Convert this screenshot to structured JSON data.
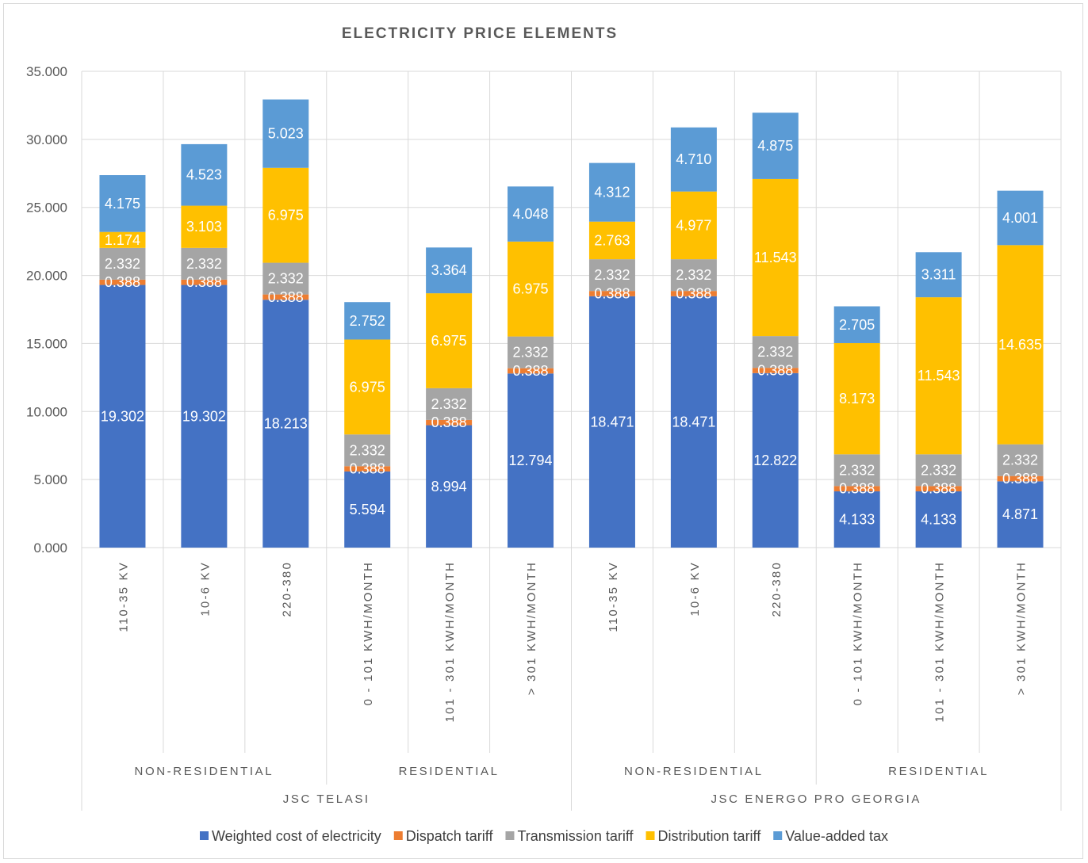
{
  "chart_data": {
    "type": "bar",
    "stacked": true,
    "title": "ELECTRICITY PRICE ELEMENTS",
    "xlabel": "",
    "ylabel": "",
    "ylim": [
      0,
      35
    ],
    "yticks": [
      "0.000",
      "5.000",
      "10.000",
      "15.000",
      "20.000",
      "25.000",
      "30.000",
      "35.000"
    ],
    "grid": "vertical category separators",
    "legend_position": "bottom",
    "categories": [
      "110-35 KV",
      "10-6 KV",
      "220-380",
      "0 - 101 KWH/MONTH",
      "101 - 301 KWH/MONTH",
      "> 301 KWH/MONTH",
      "110-35 KV",
      "10-6 KV",
      "220-380",
      "0 - 101 KWH/MONTH",
      "101 - 301 KWH/MONTH",
      "> 301 KWH/MONTH"
    ],
    "subgroups": [
      {
        "label": "NON-RESIDENTIAL",
        "span": 3
      },
      {
        "label": "RESIDENTIAL",
        "span": 3
      },
      {
        "label": "NON-RESIDENTIAL",
        "span": 3
      },
      {
        "label": "RESIDENTIAL",
        "span": 3
      }
    ],
    "groups": [
      {
        "label": "JSC TELASI",
        "span": 6
      },
      {
        "label": "JSC ENERGO PRO GEORGIA",
        "span": 6
      }
    ],
    "series": [
      {
        "name": "Weighted cost of electricity",
        "color": "#4472c4",
        "values": [
          19.302,
          19.302,
          18.213,
          5.594,
          8.994,
          12.794,
          18.471,
          18.471,
          12.822,
          4.133,
          4.133,
          4.871
        ],
        "labels": [
          "19.302",
          "19.302",
          "18.213",
          "5.594",
          "8.994",
          "12.794",
          "18.471",
          "18.471",
          "12.822",
          "4.133",
          "4.133",
          "4.871"
        ]
      },
      {
        "name": "Dispatch tariff",
        "color": "#ed7d31",
        "values": [
          0.388,
          0.388,
          0.388,
          0.388,
          0.388,
          0.388,
          0.388,
          0.388,
          0.388,
          0.388,
          0.388,
          0.388
        ],
        "labels": [
          "0.388",
          "0.388",
          "0.388",
          "0.388",
          "0.388",
          "0.388",
          "0.388",
          "0.388",
          "0.388",
          "0.388",
          "0.388",
          "0.388"
        ]
      },
      {
        "name": "Transmission tariff",
        "color": "#a5a5a5",
        "values": [
          2.332,
          2.332,
          2.332,
          2.332,
          2.332,
          2.332,
          2.332,
          2.332,
          2.332,
          2.332,
          2.332,
          2.332
        ],
        "labels": [
          "2.332",
          "2.332",
          "2.332",
          "2.332",
          "2.332",
          "2.332",
          "2.332",
          "2.332",
          "2.332",
          "2.332",
          "2.332",
          "2.332"
        ]
      },
      {
        "name": "Distribution tariff",
        "color": "#ffc000",
        "values": [
          1.174,
          3.103,
          6.975,
          6.975,
          6.975,
          6.975,
          2.763,
          4.977,
          11.543,
          8.173,
          11.543,
          14.635
        ],
        "labels": [
          "1.174",
          "3.103",
          "6.975",
          "6.975",
          "6.975",
          "6.975",
          "2.763",
          "4.977",
          "11.543",
          "8.173",
          "11.543",
          "14.635"
        ]
      },
      {
        "name": "Value-added tax",
        "color": "#5b9bd5",
        "values": [
          4.175,
          4.523,
          5.023,
          2.752,
          3.364,
          4.048,
          4.312,
          4.71,
          4.875,
          2.705,
          3.311,
          4.001
        ],
        "labels": [
          "4.175",
          "4.523",
          "5.023",
          "2.752",
          "3.364",
          "4.048",
          "4.312",
          "4.710",
          "4.875",
          "2.705",
          "3.311",
          "4.001"
        ]
      }
    ]
  }
}
